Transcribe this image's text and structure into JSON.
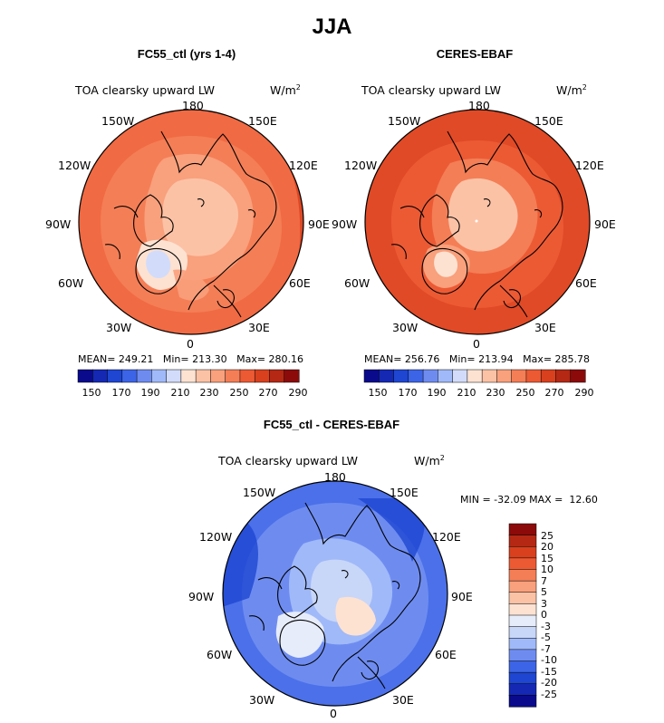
{
  "figure": {
    "title": "JJA"
  },
  "panels": [
    {
      "title": "FC55_ctl (yrs 1-4)",
      "label": "TOA clearsky upward LW",
      "units": "W/m",
      "units_sup": "2",
      "stats": "MEAN= 249.21   Min= 213.30   Max= 280.16",
      "mean": 249.21,
      "min": 213.3,
      "max": 280.16
    },
    {
      "title": "CERES-EBAF",
      "label": "TOA clearsky upward LW",
      "units": "W/m",
      "units_sup": "2",
      "stats": "MEAN= 256.76   Min= 213.94   Max= 285.78",
      "mean": 256.76,
      "min": 213.94,
      "max": 285.78
    },
    {
      "title": "FC55_ctl - CERES-EBAF",
      "label": "TOA clearsky upward LW",
      "units": "W/m",
      "units_sup": "2",
      "stats": "MIN = -32.09 MAX =  12.60",
      "min": -32.09,
      "max": 12.6
    }
  ],
  "longitude_labels": {
    "top": "180",
    "bottom": "0",
    "left_mid": "90W",
    "right_mid": "90E",
    "top_left": "150W",
    "top_right": "150E",
    "upper_left": "120W",
    "upper_right": "120E",
    "lower_left": "60W",
    "lower_right": "60E",
    "bottom_left": "30W",
    "bottom_right": "30E"
  },
  "colorbar_abs": {
    "labels": [
      "150",
      "170",
      "190",
      "210",
      "230",
      "250",
      "270",
      "290"
    ],
    "colors": [
      "#0a0a8c",
      "#1428b4",
      "#1e46d2",
      "#3c64e6",
      "#6e8cf0",
      "#a0b9f8",
      "#d2dcfa",
      "#fde2d2",
      "#fcc2a6",
      "#f9a07c",
      "#f47e56",
      "#ec5a34",
      "#d8401e",
      "#b42814",
      "#8c0a0a"
    ]
  },
  "colorbar_diff": {
    "labels": [
      "25",
      "20",
      "15",
      "10",
      "7",
      "5",
      "3",
      "0",
      "-3",
      "-5",
      "-7",
      "-10",
      "-15",
      "-20",
      "-25"
    ],
    "colors": [
      "#8c0a0a",
      "#b42814",
      "#d8401e",
      "#ec5a34",
      "#f47e56",
      "#f9a07c",
      "#fcc2a6",
      "#fde2d2",
      "#e6ecfa",
      "#c8d6f8",
      "#a0b9f8",
      "#6e8cf0",
      "#3c64e6",
      "#1e46d2",
      "#1428b4",
      "#0a0a8c"
    ]
  },
  "chart_data": [
    {
      "type": "heatmap",
      "projection": "north-polar-stereographic",
      "title": "FC55_ctl (yrs 1-4)",
      "variable": "TOA clearsky upward LW",
      "units": "W/m2",
      "mean": 249.21,
      "min": 213.3,
      "max": 280.16,
      "color_levels": [
        150,
        160,
        170,
        180,
        190,
        200,
        210,
        220,
        230,
        240,
        250,
        260,
        270,
        280,
        290
      ]
    },
    {
      "type": "heatmap",
      "projection": "north-polar-stereographic",
      "title": "CERES-EBAF",
      "variable": "TOA clearsky upward LW",
      "units": "W/m2",
      "mean": 256.76,
      "min": 213.94,
      "max": 285.78,
      "color_levels": [
        150,
        160,
        170,
        180,
        190,
        200,
        210,
        220,
        230,
        240,
        250,
        260,
        270,
        280,
        290
      ]
    },
    {
      "type": "heatmap",
      "projection": "north-polar-stereographic",
      "title": "FC55_ctl - CERES-EBAF",
      "variable": "TOA clearsky upward LW",
      "units": "W/m2",
      "min": -32.09,
      "max": 12.6,
      "color_levels": [
        -25,
        -20,
        -15,
        -10,
        -7,
        -5,
        -3,
        0,
        3,
        5,
        7,
        10,
        15,
        20,
        25
      ]
    }
  ]
}
